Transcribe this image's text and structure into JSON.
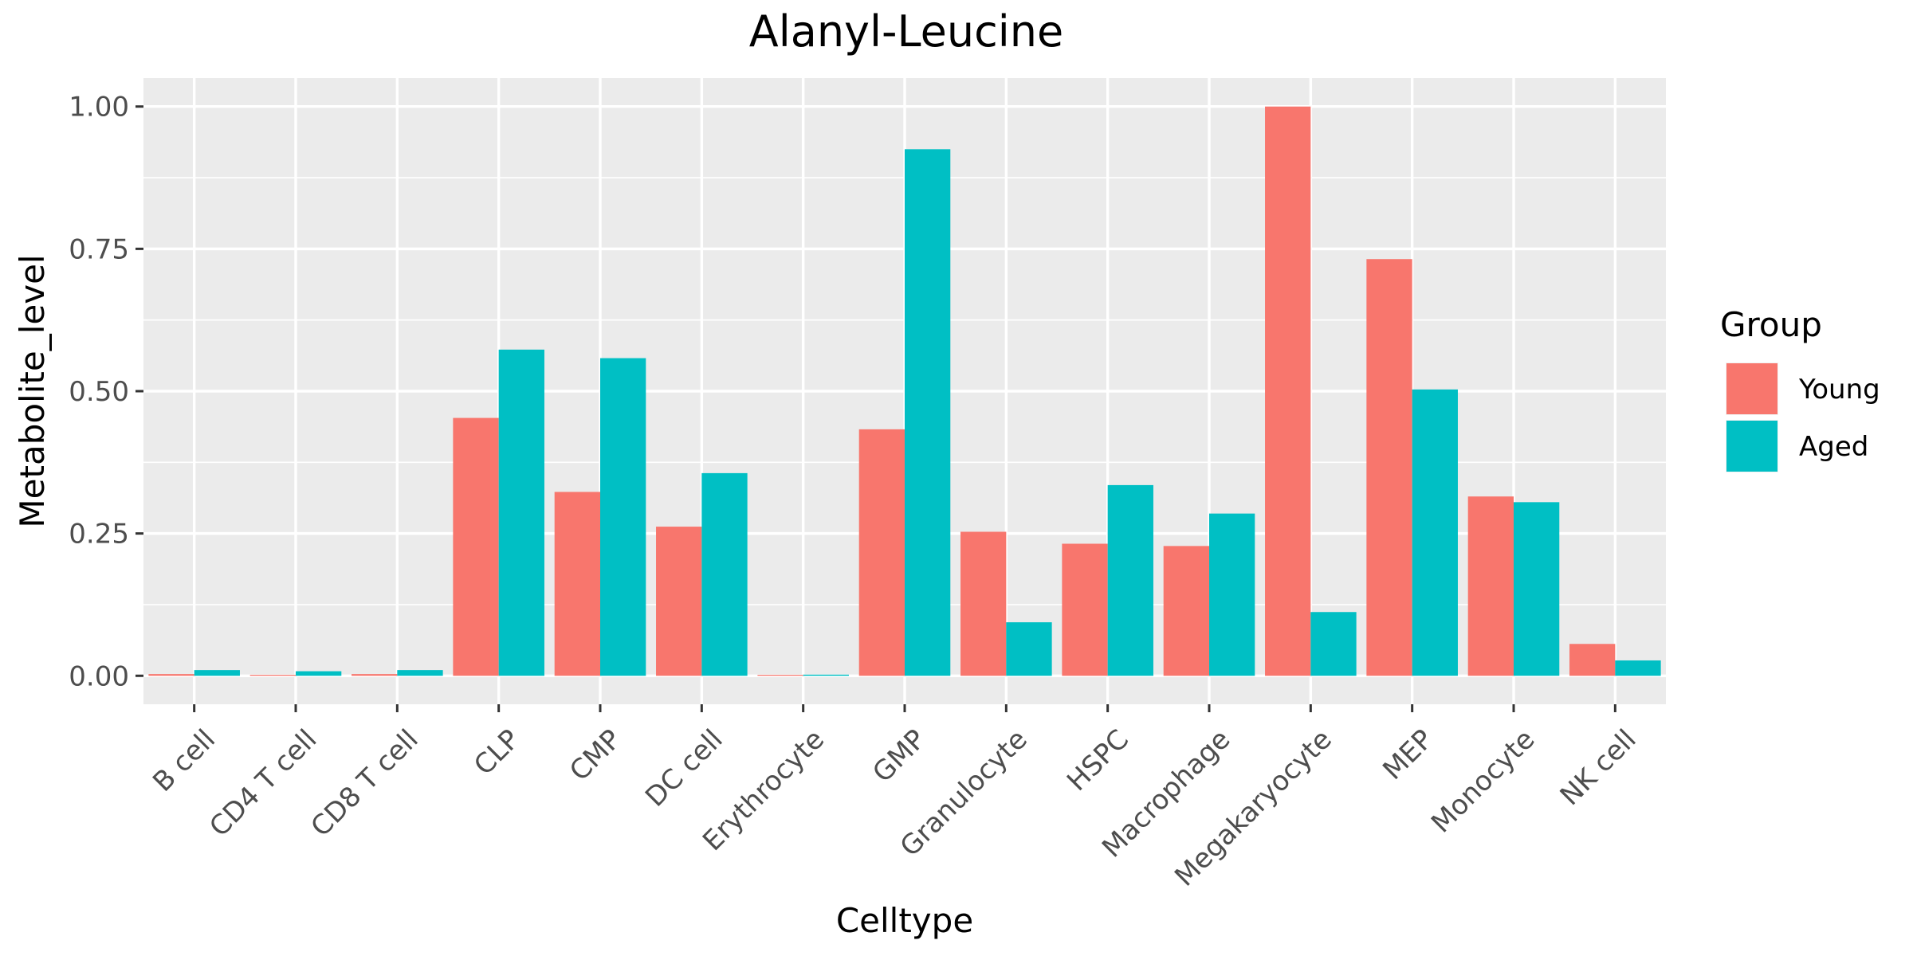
{
  "chart_data": {
    "type": "bar",
    "title": "Alanyl-Leucine",
    "xlabel": "Celltype",
    "ylabel": "Metabolite_level",
    "categories": [
      "B cell",
      "CD4 T cell",
      "CD8 T cell",
      "CLP",
      "CMP",
      "DC cell",
      "Erythrocyte",
      "GMP",
      "Granulocyte",
      "HSPC",
      "Macrophage",
      "Megakaryocyte",
      "MEP",
      "Monocyte",
      "NK cell"
    ],
    "series": [
      {
        "name": "Young",
        "color": "#F8766D",
        "values": [
          0.003,
          0.0,
          0.003,
          0.453,
          0.323,
          0.262,
          0.0,
          0.433,
          0.253,
          0.232,
          0.228,
          1.0,
          0.732,
          0.315,
          0.056
        ]
      },
      {
        "name": "Aged",
        "color": "#00BFC4",
        "values": [
          0.01,
          0.008,
          0.01,
          0.573,
          0.558,
          0.356,
          0.002,
          0.925,
          0.094,
          0.335,
          0.285,
          0.112,
          0.503,
          0.305,
          0.027
        ]
      }
    ],
    "ylim": [
      -0.05,
      1.05
    ],
    "yticks": [
      0.0,
      0.25,
      0.5,
      0.75,
      1.0
    ],
    "ytick_labels": [
      "0.00",
      "0.25",
      "0.50",
      "0.75",
      "1.00"
    ],
    "legend": {
      "title": "Group",
      "position": "right"
    },
    "grid": true,
    "panel_background": "#EBEBEB"
  }
}
